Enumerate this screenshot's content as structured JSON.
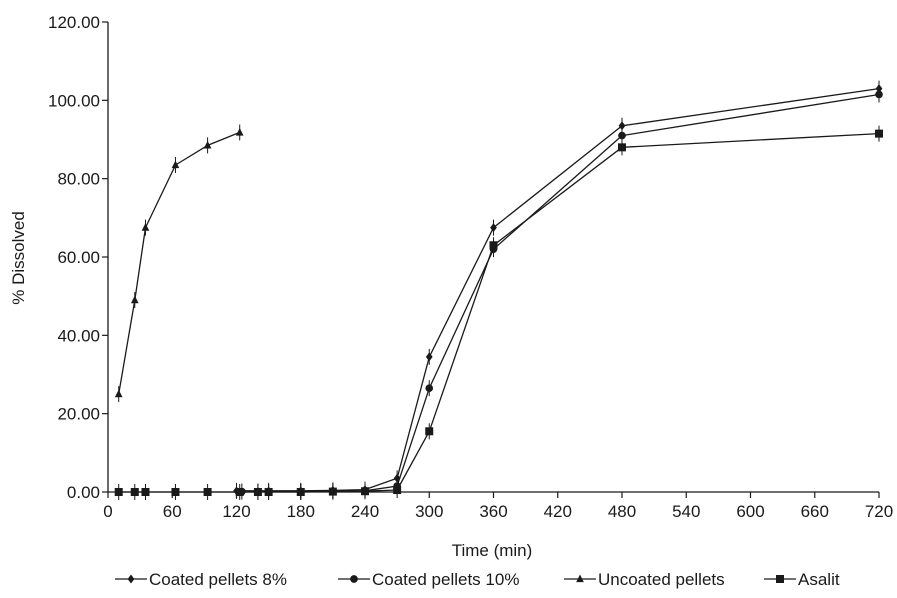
{
  "chart_data": {
    "type": "line",
    "title": "",
    "xlabel": "Time (min)",
    "ylabel": "% Dissolved",
    "xlim": [
      0,
      720
    ],
    "ylim": [
      0,
      120
    ],
    "grid": false,
    "legend_position": "bottom",
    "x_ticks": [
      0,
      60,
      120,
      180,
      240,
      300,
      360,
      420,
      480,
      540,
      600,
      660,
      720
    ],
    "x_tick_labels": [
      "0",
      "60",
      "120",
      "180",
      "240",
      "300",
      "360",
      "420",
      "480",
      "540",
      "600",
      "660",
      "720"
    ],
    "y_ticks": [
      0,
      20,
      40,
      60,
      80,
      100,
      120
    ],
    "y_tick_labels": [
      "0.00",
      "20.00",
      "40.00",
      "60.00",
      "80.00",
      "100.00",
      "120.00"
    ],
    "series": [
      {
        "name": "Coated pellets 8%",
        "marker": "diamond",
        "x": [
          120,
          150,
          180,
          210,
          240,
          270,
          300,
          360,
          480,
          720
        ],
        "y": [
          0.3,
          0.3,
          0.3,
          0.4,
          0.6,
          3.5,
          34.5,
          67.5,
          93.5,
          103
        ]
      },
      {
        "name": "Coated pellets 10%",
        "marker": "circle",
        "x": [
          125,
          140,
          180,
          210,
          240,
          270,
          300,
          360,
          480,
          720
        ],
        "y": [
          0.1,
          0.1,
          0.1,
          0.2,
          0.3,
          1.5,
          26.5,
          62,
          91,
          101.5
        ]
      },
      {
        "name": "Uncoated pellets",
        "marker": "triangle",
        "x": [
          10,
          25,
          35,
          63,
          93,
          123
        ],
        "y": [
          25,
          49,
          67.5,
          83.5,
          88.5,
          91.8
        ]
      },
      {
        "name": "Asalit",
        "marker": "square",
        "x": [
          10,
          25,
          35,
          63,
          93,
          123,
          140,
          150,
          180,
          210,
          240,
          270,
          300,
          360,
          480,
          720
        ],
        "y": [
          0,
          0,
          0,
          0,
          0,
          0,
          0,
          0,
          0,
          0.1,
          0.2,
          0.5,
          15.5,
          63,
          88,
          91.5
        ]
      }
    ]
  }
}
